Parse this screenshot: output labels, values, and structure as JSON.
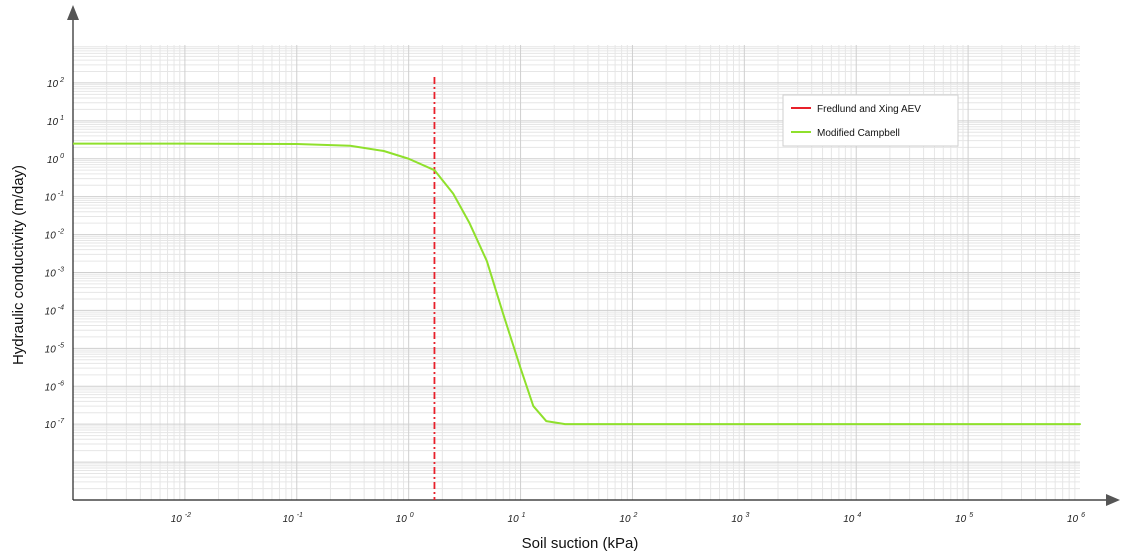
{
  "chart_data": {
    "type": "line",
    "title": "",
    "xlabel": "Soil suction  (kPa)",
    "ylabel": "Hydraulic conductivity  (m/day)",
    "x_scale": "log",
    "y_scale": "log",
    "xlim": [
      0.001,
      1000000
    ],
    "ylim": [
      1e-09,
      1000
    ],
    "x_ticks": [
      {
        "base": "10",
        "exp": "-2",
        "value": 0.01
      },
      {
        "base": "10",
        "exp": "-1",
        "value": 0.1
      },
      {
        "base": "10",
        "exp": "0",
        "value": 1
      },
      {
        "base": "10",
        "exp": "1",
        "value": 10
      },
      {
        "base": "10",
        "exp": "2",
        "value": 100
      },
      {
        "base": "10",
        "exp": "3",
        "value": 1000
      },
      {
        "base": "10",
        "exp": "4",
        "value": 10000
      },
      {
        "base": "10",
        "exp": "5",
        "value": 100000
      },
      {
        "base": "10",
        "exp": "6",
        "value": 1000000
      }
    ],
    "y_ticks": [
      {
        "base": "10",
        "exp": "2",
        "value": 100
      },
      {
        "base": "10",
        "exp": "1",
        "value": 10
      },
      {
        "base": "10",
        "exp": "0",
        "value": 1
      },
      {
        "base": "10",
        "exp": "-1",
        "value": 0.1
      },
      {
        "base": "10",
        "exp": "-2",
        "value": 0.01
      },
      {
        "base": "10",
        "exp": "-3",
        "value": 0.001
      },
      {
        "base": "10",
        "exp": "-4",
        "value": 0.0001
      },
      {
        "base": "10",
        "exp": "-5",
        "value": 1e-05
      },
      {
        "base": "10",
        "exp": "-6",
        "value": 1e-06
      },
      {
        "base": "10",
        "exp": "-7",
        "value": 1e-07
      }
    ],
    "grid": true,
    "legend_position": "top-right",
    "series": [
      {
        "name": "Fredlund and Xing AEV",
        "color": "#e8202a",
        "style": "dash-dot",
        "kind": "vertical_line",
        "x": 1.7
      },
      {
        "name": "Modified Campbell",
        "color": "#8fe02c",
        "style": "solid",
        "kind": "curve",
        "points": [
          [
            0.001,
            2.5
          ],
          [
            0.01,
            2.5
          ],
          [
            0.1,
            2.45
          ],
          [
            0.3,
            2.2
          ],
          [
            0.6,
            1.6
          ],
          [
            1.0,
            1.0
          ],
          [
            1.7,
            0.5
          ],
          [
            2.5,
            0.12
          ],
          [
            3.5,
            0.02
          ],
          [
            5.0,
            0.002
          ],
          [
            7.0,
            8e-05
          ],
          [
            10.0,
            3e-06
          ],
          [
            13.0,
            3e-07
          ],
          [
            17.0,
            1.2e-07
          ],
          [
            25.0,
            1e-07
          ],
          [
            100.0,
            1e-07
          ],
          [
            1000000,
            1e-07
          ]
        ]
      }
    ]
  }
}
